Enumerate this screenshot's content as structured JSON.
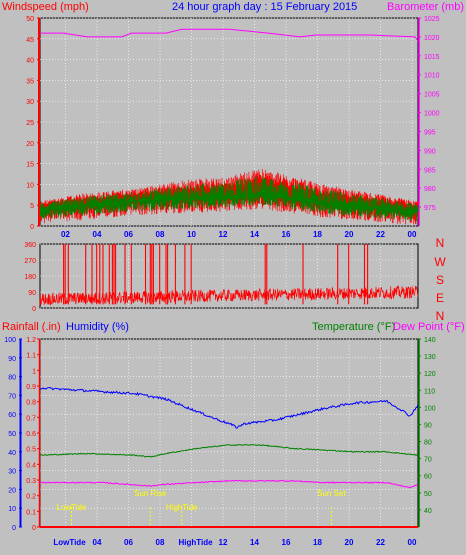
{
  "header": {
    "left_label": "Windspeed (mph)",
    "title": "24 hour graph day : 15 February 2015",
    "right_label": "Barometer (mb)"
  },
  "direction_letters": [
    "N",
    "W",
    "S",
    "E",
    "N"
  ],
  "bottom_header": {
    "rainfall_label": "Rainfall (.in)",
    "humidity_label": "Humidity (%)",
    "temperature_label": "Temperature (°F)",
    "dewpoint_label": "Dew Point (°F)"
  },
  "colors": {
    "background": "#c0c0c0",
    "wind": "#008000",
    "gust": "#ff0000",
    "barometer": "#ff00ff",
    "direction": "#ff0000",
    "humidity": "#0000ff",
    "temperature": "#008000",
    "dewpoint": "#ff00ff",
    "rain": "#ff0000",
    "event": "#ffff00",
    "grid": "#ffffff"
  },
  "chart_data": [
    {
      "type": "line",
      "title": "24 hour graph day : 15 February 2015",
      "x_ticks": [
        "02",
        "04",
        "06",
        "08",
        "10",
        "12",
        "14",
        "16",
        "18",
        "20",
        "22",
        "00"
      ],
      "left_axis": {
        "label": "Windspeed (mph)",
        "ylim": [
          0,
          50
        ],
        "ticks": [
          0,
          5,
          10,
          15,
          20,
          25,
          30,
          35,
          40,
          45,
          50
        ]
      },
      "right_axis": {
        "label": "Barometer (mb)",
        "ylim": [
          970,
          1025
        ],
        "ticks": [
          975,
          980,
          985,
          990,
          995,
          1000,
          1005,
          1010,
          1015,
          1020,
          1025
        ]
      },
      "barometer": {
        "hours": [
          0,
          1.5,
          3.0,
          5.2,
          5.8,
          8.0,
          9.0,
          12.0,
          14.5,
          16.5,
          17.5,
          21.0,
          23.8,
          24
        ],
        "values": [
          1021,
          1021,
          1020,
          1020,
          1021,
          1021,
          1022,
          1022,
          1021,
          1020,
          1020.5,
          1020.5,
          1020,
          1019
        ]
      },
      "windspeed_profile": {
        "hours": [
          0,
          3,
          6,
          9,
          12,
          14,
          16,
          18,
          21,
          24
        ],
        "mean": [
          4,
          5,
          6,
          6.5,
          7,
          7.5,
          6.5,
          5.5,
          4.5,
          3.5
        ],
        "gust": [
          6,
          8,
          9,
          11,
          12,
          14,
          12,
          10,
          8,
          6
        ]
      },
      "grid": true
    },
    {
      "type": "line",
      "title": "",
      "axis": {
        "label": "",
        "ylim": [
          0,
          360
        ],
        "ticks": [
          0,
          90,
          180,
          270,
          360
        ]
      },
      "direction_profile": {
        "hours": [
          0,
          6,
          12,
          18,
          24
        ],
        "base": [
          50,
          60,
          70,
          80,
          90
        ]
      },
      "spikes_hours": [
        1.5,
        1.6,
        1.8,
        2.9,
        3.3,
        3.6,
        3.8,
        4.0,
        4.4,
        4.6,
        4.7,
        4.8,
        5.4,
        5.8,
        6.7,
        7.0,
        7.1,
        7.2,
        7.6,
        8.0,
        8.1,
        8.6,
        9.2,
        9.6,
        14.3,
        14.4,
        16.7,
        18.9,
        19.6,
        20.6,
        20.8
      ],
      "grid": true
    },
    {
      "type": "line",
      "title": "",
      "x_ticks": [
        "LowTide",
        "04",
        "06",
        "08",
        "HighTide",
        "12",
        "14",
        "16",
        "18",
        "20",
        "22",
        "00"
      ],
      "humidity_axis": {
        "label": "Humidity (%)",
        "ylim": [
          0,
          100
        ],
        "ticks": [
          0,
          10,
          20,
          30,
          40,
          50,
          60,
          70,
          80,
          90,
          100
        ]
      },
      "rain_axis": {
        "label": "Rainfall (.in)",
        "ylim": [
          0,
          1.2
        ],
        "ticks": [
          0,
          0.1,
          0.2,
          0.3,
          0.4,
          0.5,
          0.6,
          0.7,
          0.8,
          0.9,
          1,
          1.1,
          1.2
        ]
      },
      "temp_axis": {
        "label": "Temperature (°F)",
        "ylim": [
          30,
          140
        ],
        "ticks": [
          40,
          50,
          60,
          70,
          80,
          90,
          100,
          110,
          120,
          130,
          140
        ]
      },
      "series": [
        {
          "name": "Humidity (%)",
          "hours": [
            0,
            2,
            4,
            6,
            8,
            9.5,
            11,
            12,
            12.5,
            13,
            14,
            15,
            16.5,
            18,
            20,
            22,
            23,
            23.5,
            24
          ],
          "values": [
            74,
            73,
            72,
            71,
            68,
            63,
            58,
            55,
            53,
            55,
            56,
            57,
            60,
            63,
            66,
            67,
            62,
            59,
            65
          ]
        },
        {
          "name": "Temperature (°F)",
          "hours": [
            0,
            3,
            6,
            7,
            8,
            10,
            12,
            14,
            16,
            18,
            20,
            22,
            24
          ],
          "values": [
            72,
            73,
            72,
            71,
            73,
            76,
            78,
            78,
            76,
            75,
            74,
            74,
            72
          ]
        },
        {
          "name": "Dew Point (°F)",
          "hours": [
            0,
            4,
            7,
            8,
            10,
            12,
            14,
            16,
            18,
            20,
            22,
            23.5,
            24
          ],
          "values": [
            56,
            56,
            54,
            55,
            56,
            57,
            57,
            57,
            56,
            56,
            56,
            53,
            55
          ]
        },
        {
          "name": "Rainfall (.in)",
          "hours": [
            0,
            24
          ],
          "values": [
            0,
            0
          ]
        }
      ],
      "events": [
        {
          "label": "LowTide",
          "hour": 2.0
        },
        {
          "label": "Sun Rise",
          "hour": 7.0
        },
        {
          "label": "HighTide",
          "hour": 9.0
        },
        {
          "label": "Sun Set",
          "hour": 18.5
        }
      ],
      "grid": true
    }
  ]
}
